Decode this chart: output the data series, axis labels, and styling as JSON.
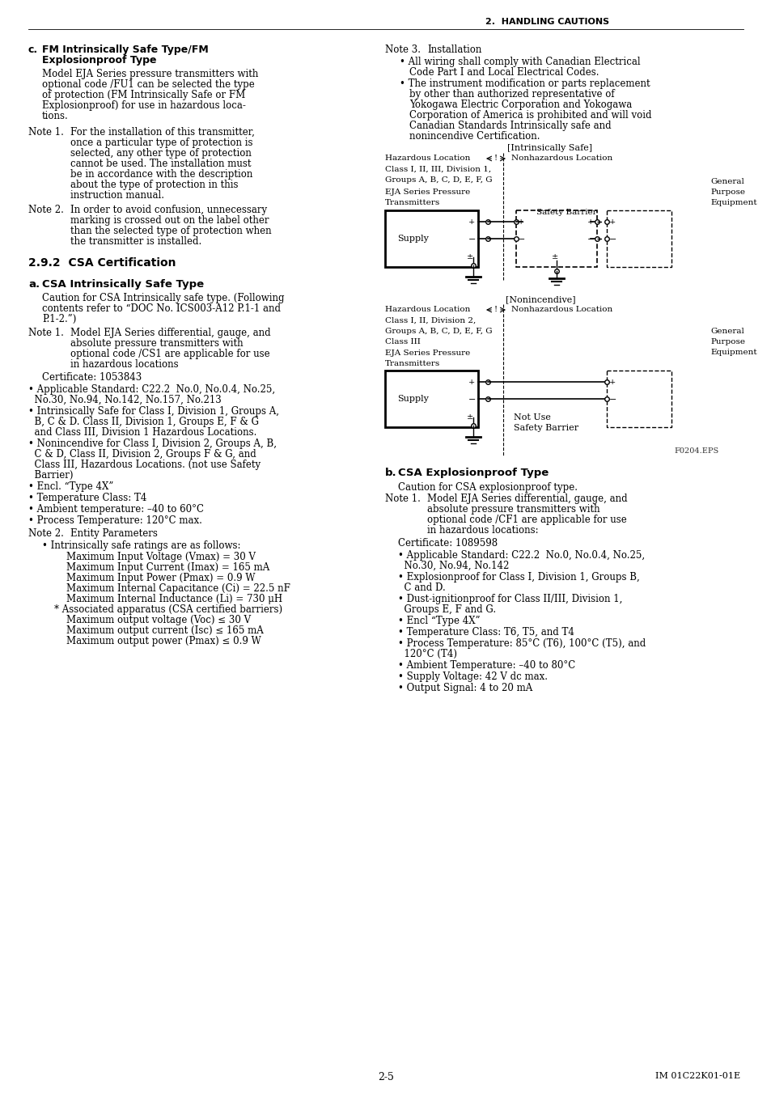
{
  "page_header": "2.  HANDLING CAUTIONS",
  "page_footer_left": "2-5",
  "page_footer_right": "IM 01C22K01-01E",
  "bg_color": "#ffffff"
}
